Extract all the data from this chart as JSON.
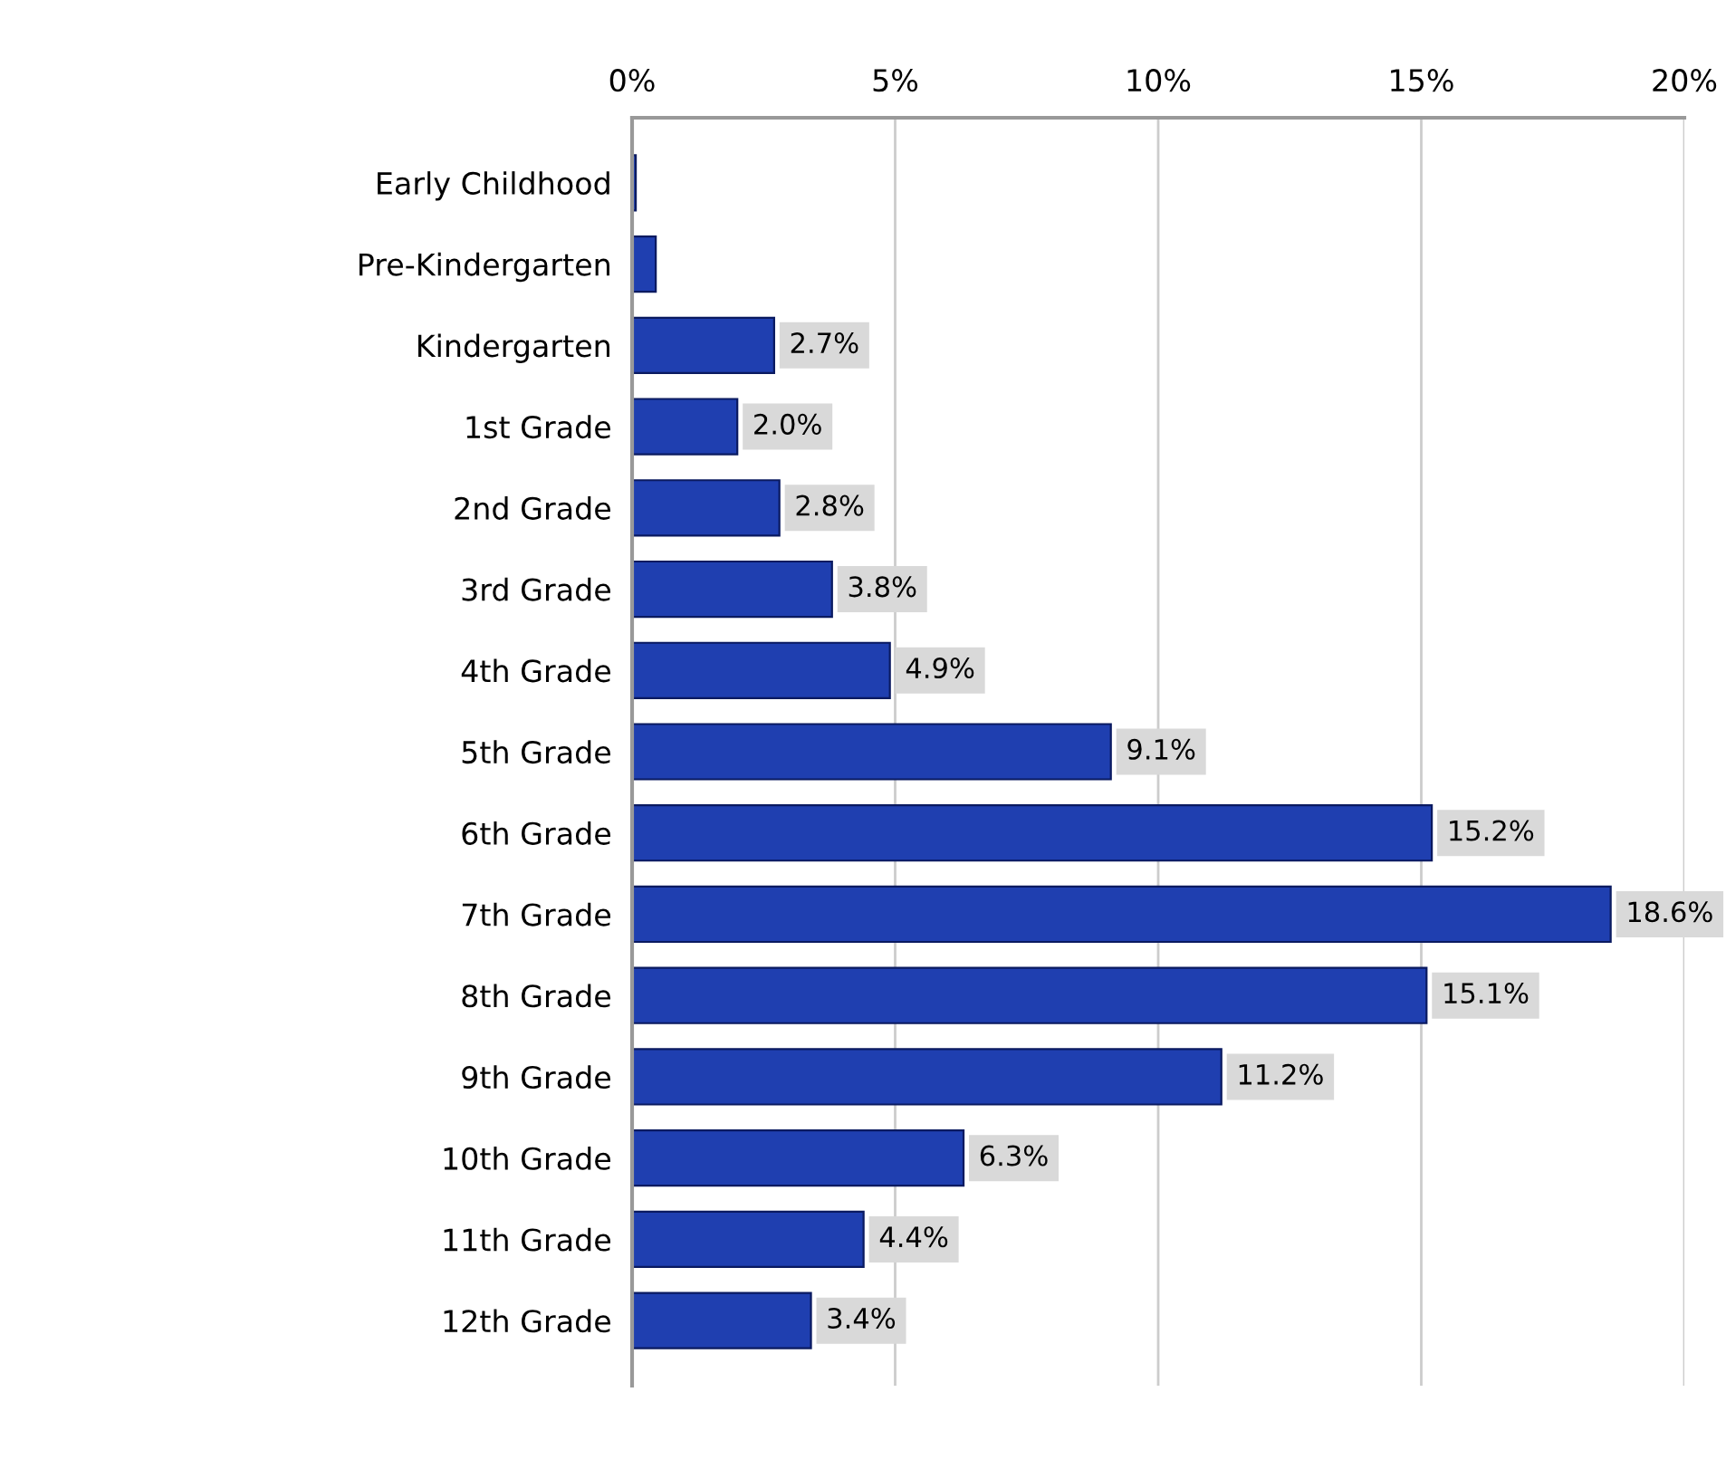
{
  "chart_data": {
    "type": "bar",
    "orientation": "horizontal",
    "categories": [
      "Early Childhood",
      "Pre-Kindergarten",
      "Kindergarten",
      "1st Grade",
      "2nd Grade",
      "3rd Grade",
      "4th Grade",
      "5th Grade",
      "6th Grade",
      "7th Grade",
      "8th Grade",
      "9th Grade",
      "10th Grade",
      "11th Grade",
      "12th Grade"
    ],
    "values": [
      0.07,
      0.45,
      2.7,
      2.0,
      2.8,
      3.8,
      4.9,
      9.1,
      15.2,
      18.6,
      15.1,
      11.2,
      6.3,
      4.4,
      3.4
    ],
    "value_labels": [
      null,
      null,
      "2.7%",
      "2.0%",
      "2.8%",
      "3.8%",
      "4.9%",
      "9.1%",
      "15.2%",
      "18.6%",
      "15.1%",
      "11.2%",
      "6.3%",
      "4.4%",
      "3.4%"
    ],
    "color": "#1f3fb0",
    "xlim": [
      0,
      20
    ],
    "xticks": [
      {
        "value": 0,
        "label": "0%"
      },
      {
        "value": 5,
        "label": "5%"
      },
      {
        "value": 10,
        "label": "10%"
      },
      {
        "value": 15,
        "label": "15%"
      },
      {
        "value": 20,
        "label": "20%"
      }
    ],
    "grid": "x"
  }
}
